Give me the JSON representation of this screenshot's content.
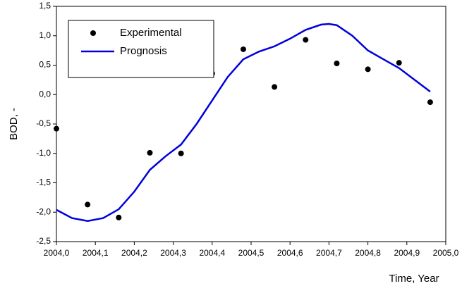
{
  "chart_data": {
    "type": "scatter",
    "x_label": "Time, Year",
    "y_label": "BOD, -",
    "xlim": [
      2004.0,
      2005.0
    ],
    "ylim": [
      -2.5,
      1.5
    ],
    "xticks": [
      {
        "value": 2004.0,
        "label": "2004,0"
      },
      {
        "value": 2004.1,
        "label": "2004,1"
      },
      {
        "value": 2004.2,
        "label": "2004,2"
      },
      {
        "value": 2004.3,
        "label": "2004,3"
      },
      {
        "value": 2004.4,
        "label": "2004,4"
      },
      {
        "value": 2004.5,
        "label": "2004,5"
      },
      {
        "value": 2004.6,
        "label": "2004,6"
      },
      {
        "value": 2004.7,
        "label": "2004,7"
      },
      {
        "value": 2004.8,
        "label": "2004,8"
      },
      {
        "value": 2004.9,
        "label": "2004,9"
      },
      {
        "value": 2005.0,
        "label": "2005,0"
      }
    ],
    "yticks": [
      {
        "value": -2.5,
        "label": "-2,5"
      },
      {
        "value": -2.0,
        "label": "-2,0"
      },
      {
        "value": -1.5,
        "label": "-1,5"
      },
      {
        "value": -1.0,
        "label": "-1,0"
      },
      {
        "value": -0.5,
        "label": "-0,5"
      },
      {
        "value": 0.0,
        "label": "0,0"
      },
      {
        "value": 0.5,
        "label": "0,5"
      },
      {
        "value": 1.0,
        "label": "1,0"
      },
      {
        "value": 1.5,
        "label": "1,5"
      }
    ],
    "legend": "upper left",
    "series": [
      {
        "name": "Experimental",
        "mode": "markers",
        "color": "#000000",
        "x": [
          2004.0,
          2004.08,
          2004.16,
          2004.24,
          2004.32,
          2004.4,
          2004.48,
          2004.56,
          2004.64,
          2004.72,
          2004.8,
          2004.88,
          2004.96
        ],
        "values": [
          -0.58,
          -1.87,
          -2.09,
          -0.99,
          -1.0,
          0.36,
          0.77,
          0.13,
          0.93,
          0.53,
          0.43,
          0.54,
          -0.13
        ]
      },
      {
        "name": "Prognosis",
        "mode": "line",
        "color": "#0000dd",
        "x": [
          2004.0,
          2004.04,
          2004.08,
          2004.12,
          2004.16,
          2004.2,
          2004.24,
          2004.28,
          2004.32,
          2004.36,
          2004.4,
          2004.44,
          2004.48,
          2004.52,
          2004.56,
          2004.6,
          2004.64,
          2004.68,
          2004.7,
          2004.72,
          2004.76,
          2004.8,
          2004.84,
          2004.88,
          2004.92,
          2004.96
        ],
        "values": [
          -1.96,
          -2.1,
          -2.15,
          -2.1,
          -1.95,
          -1.65,
          -1.28,
          -1.05,
          -0.85,
          -0.5,
          -0.1,
          0.3,
          0.6,
          0.73,
          0.82,
          0.95,
          1.1,
          1.19,
          1.2,
          1.18,
          1.0,
          0.75,
          0.6,
          0.45,
          0.25,
          0.05
        ]
      }
    ]
  }
}
